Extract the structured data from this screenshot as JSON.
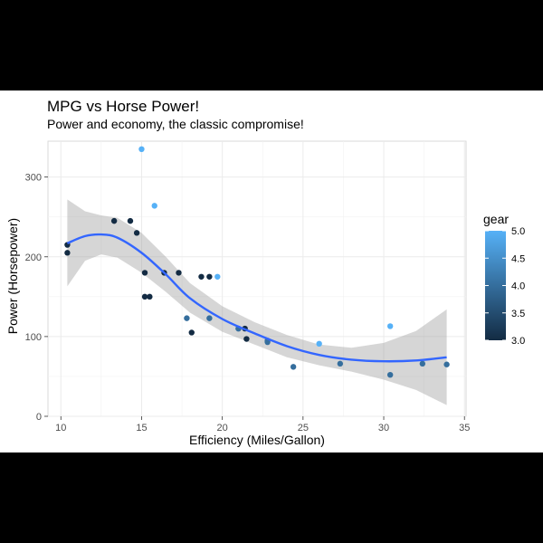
{
  "chart_data": {
    "type": "scatter",
    "title": "MPG vs Horse Power!",
    "subtitle": "Power and economy, the classic compromise!",
    "xlabel": "Efficiency (Miles/Gallon)",
    "ylabel": "Power (Horsepower)",
    "xlim": [
      9.2,
      35.1
    ],
    "ylim": [
      0,
      345
    ],
    "x_ticks": [
      10,
      15,
      20,
      25,
      30,
      35
    ],
    "y_ticks": [
      0,
      100,
      200,
      300
    ],
    "grid": true,
    "legend": {
      "title": "gear",
      "position": "right",
      "type": "colorbar",
      "range": [
        3.0,
        5.0
      ],
      "ticks": [
        "3.0",
        "3.5",
        "4.0",
        "4.5",
        "5.0"
      ],
      "low_color": "#132B43",
      "high_color": "#56B1F7"
    },
    "points": [
      {
        "x": 21.0,
        "y": 110,
        "gear": 4
      },
      {
        "x": 21.0,
        "y": 110,
        "gear": 4
      },
      {
        "x": 22.8,
        "y": 93,
        "gear": 4
      },
      {
        "x": 21.4,
        "y": 110,
        "gear": 3
      },
      {
        "x": 18.7,
        "y": 175,
        "gear": 3
      },
      {
        "x": 18.1,
        "y": 105,
        "gear": 3
      },
      {
        "x": 14.3,
        "y": 245,
        "gear": 3
      },
      {
        "x": 24.4,
        "y": 62,
        "gear": 4
      },
      {
        "x": 22.8,
        "y": 95,
        "gear": 4
      },
      {
        "x": 19.2,
        "y": 123,
        "gear": 4
      },
      {
        "x": 17.8,
        "y": 123,
        "gear": 4
      },
      {
        "x": 16.4,
        "y": 180,
        "gear": 3
      },
      {
        "x": 17.3,
        "y": 180,
        "gear": 3
      },
      {
        "x": 15.2,
        "y": 180,
        "gear": 3
      },
      {
        "x": 10.4,
        "y": 205,
        "gear": 3
      },
      {
        "x": 10.4,
        "y": 215,
        "gear": 3
      },
      {
        "x": 14.7,
        "y": 230,
        "gear": 3
      },
      {
        "x": 32.4,
        "y": 66,
        "gear": 4
      },
      {
        "x": 30.4,
        "y": 52,
        "gear": 4
      },
      {
        "x": 33.9,
        "y": 65,
        "gear": 4
      },
      {
        "x": 21.5,
        "y": 97,
        "gear": 3
      },
      {
        "x": 15.5,
        "y": 150,
        "gear": 3
      },
      {
        "x": 15.2,
        "y": 150,
        "gear": 3
      },
      {
        "x": 13.3,
        "y": 245,
        "gear": 3
      },
      {
        "x": 19.2,
        "y": 175,
        "gear": 3
      },
      {
        "x": 27.3,
        "y": 66,
        "gear": 4
      },
      {
        "x": 26.0,
        "y": 91,
        "gear": 5
      },
      {
        "x": 30.4,
        "y": 113,
        "gear": 5
      },
      {
        "x": 15.8,
        "y": 264,
        "gear": 5
      },
      {
        "x": 19.7,
        "y": 175,
        "gear": 5
      },
      {
        "x": 15.0,
        "y": 335,
        "gear": 5
      }
    ],
    "smooth": {
      "color": "#3366FF",
      "ribbon_color": "#999999",
      "x": [
        10.4,
        11.5,
        12.5,
        13.5,
        15.0,
        16.5,
        18.0,
        20.0,
        22.0,
        24.0,
        26.0,
        28.0,
        30.0,
        32.0,
        33.9
      ],
      "y": [
        217,
        226,
        228,
        224,
        205,
        178,
        148,
        122,
        104,
        88,
        77,
        71,
        69,
        70,
        74
      ],
      "upper": [
        272,
        257,
        252,
        249,
        230,
        200,
        167,
        138,
        118,
        102,
        90,
        86,
        92,
        107,
        134
      ],
      "lower": [
        163,
        195,
        203,
        199,
        180,
        156,
        130,
        106,
        90,
        74,
        64,
        56,
        46,
        33,
        14
      ]
    }
  }
}
